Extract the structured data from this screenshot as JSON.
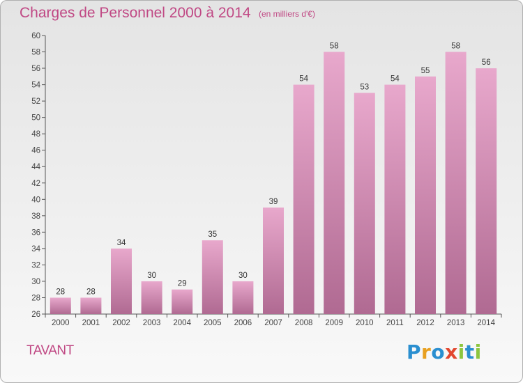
{
  "header": {
    "title": "Charges de Personnel 2000 à 2014",
    "subtitle": "(en milliers d'€)"
  },
  "footer": {
    "commune": "TAVANT",
    "brand": "Proxiti",
    "brand_letters": [
      {
        "ch": "P",
        "color": "#2a8fd0"
      },
      {
        "ch": "r",
        "color": "#e8a020"
      },
      {
        "ch": "o",
        "color": "#2a8fd0"
      },
      {
        "ch": "x",
        "color": "#e2472f"
      },
      {
        "ch": "i",
        "color": "#8cc63f"
      },
      {
        "ch": "t",
        "color": "#2a8fd0"
      },
      {
        "ch": "i",
        "color": "#8cc63f"
      }
    ]
  },
  "chart_data": {
    "type": "bar",
    "categories": [
      "2000",
      "2001",
      "2002",
      "2003",
      "2004",
      "2005",
      "2006",
      "2007",
      "2008",
      "2009",
      "2010",
      "2011",
      "2012",
      "2013",
      "2014"
    ],
    "values": [
      28,
      28,
      34,
      30,
      29,
      35,
      30,
      39,
      54,
      58,
      53,
      54,
      55,
      58,
      56
    ],
    "ylim": [
      26,
      60
    ],
    "yticks": [
      26,
      28,
      30,
      32,
      34,
      36,
      38,
      40,
      42,
      44,
      46,
      48,
      50,
      52,
      54,
      56,
      58,
      60
    ],
    "grid": false,
    "bar_color_top": "#e8a8cc",
    "bar_color_bottom": "#b06a92"
  }
}
